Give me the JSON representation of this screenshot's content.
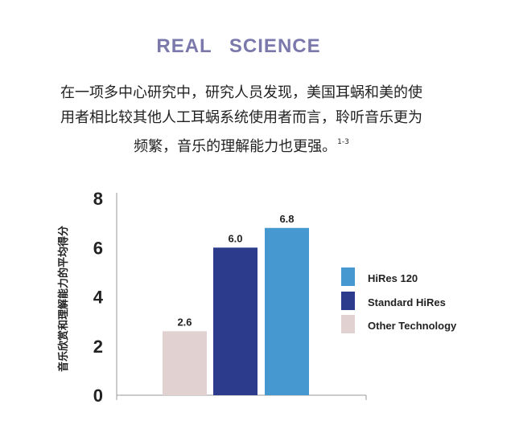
{
  "header": {
    "title": "REAL   SCIENCE",
    "lines": [
      "在一项多中心研究中，研究人员发现，美国耳蜗和美的使",
      "用者相比较其他人工耳蜗系统使用者而言，聆听音乐更为",
      "频繁，音乐的理解能力也更强。"
    ],
    "footnote": "1-3"
  },
  "chart_data": {
    "type": "bar",
    "categories": [
      "Other Technology",
      "Standard HiRes",
      "HiRes 120"
    ],
    "values": [
      2.6,
      6.0,
      6.8
    ],
    "value_labels": [
      "2.6",
      "6.0",
      "6.8"
    ],
    "colors": [
      "#e2d1d1",
      "#2c3b8c",
      "#4598d0"
    ],
    "ylabel": "音乐欣赏和理解能力的平均得分",
    "xlabel": "",
    "ylim": [
      0,
      8
    ],
    "yticks": [
      "0",
      "2",
      "4",
      "6",
      "8"
    ],
    "ytick_values": [
      0,
      2,
      4,
      6,
      8
    ],
    "grid": false,
    "legend": {
      "placement": "right",
      "items": [
        {
          "label": "HiRes 120",
          "color": "#4598d0"
        },
        {
          "label": "Standard HiRes",
          "color": "#2c3b8c"
        },
        {
          "label": "Other Technology",
          "color": "#e2d1d1"
        }
      ]
    }
  }
}
